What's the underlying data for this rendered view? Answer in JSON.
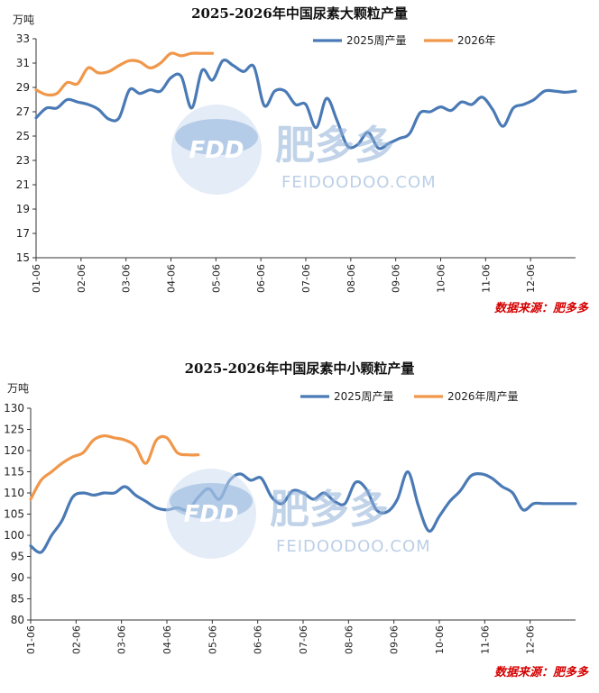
{
  "watermark": {
    "logo_text": "FDD",
    "brand": "肥多多",
    "site": "FEIDOODOO.COM"
  },
  "colors": {
    "series_2025": "#4a7ab5",
    "series_2026": "#f0974a",
    "source": "#d40000"
  },
  "chart_data": [
    {
      "type": "line",
      "title": "2025-2026年中国尿素大颗粒产量",
      "ylabel": "万吨",
      "ylim": [
        15,
        33
      ],
      "yticks": [
        15,
        17,
        19,
        21,
        23,
        25,
        27,
        29,
        31,
        33
      ],
      "xlim": [
        0,
        52
      ],
      "xtick_labels": [
        "01-06",
        "02-06",
        "03-06",
        "04-06",
        "05-06",
        "06-06",
        "07-06",
        "08-06",
        "09-06",
        "10-06",
        "11-06",
        "12-06"
      ],
      "source": "数据来源：肥多多",
      "series": [
        {
          "name": "2025周产量",
          "color": "#4a7ab5",
          "x": [
            0,
            1,
            2,
            3,
            4,
            5,
            6,
            7,
            8,
            9,
            10,
            11,
            12,
            13,
            14,
            15,
            16,
            17,
            18,
            19,
            20,
            21,
            22,
            23,
            24,
            25,
            26,
            27,
            28,
            29,
            30,
            31,
            32,
            33,
            34,
            35,
            36,
            37,
            38,
            39,
            40,
            41,
            42,
            43,
            44,
            45,
            46,
            47,
            48,
            49,
            50,
            51,
            52
          ],
          "y": [
            26.5,
            27.3,
            27.3,
            28.0,
            27.8,
            27.6,
            27.2,
            26.4,
            26.5,
            28.8,
            28.5,
            28.8,
            28.7,
            29.8,
            29.9,
            27.3,
            30.4,
            29.6,
            31.2,
            30.8,
            30.3,
            30.7,
            27.5,
            28.7,
            28.7,
            27.6,
            27.6,
            25.7,
            28.1,
            26.3,
            24.2,
            24.3,
            25.3,
            24.0,
            24.4,
            24.8,
            25.2,
            26.9,
            27.0,
            27.4,
            27.1,
            27.8,
            27.6,
            28.2,
            27.2,
            25.8,
            27.3,
            27.6,
            28.0,
            28.7,
            28.7,
            28.6,
            28.7
          ]
        },
        {
          "name": "2026年",
          "color": "#f0974a",
          "x": [
            0,
            1,
            2,
            3,
            4,
            5,
            6,
            7,
            8,
            9,
            10,
            11,
            12,
            13,
            14,
            15,
            16,
            17
          ],
          "y": [
            28.8,
            28.4,
            28.5,
            29.4,
            29.3,
            30.6,
            30.2,
            30.3,
            30.8,
            31.2,
            31.1,
            30.6,
            31.0,
            31.8,
            31.6,
            31.8,
            31.8,
            31.8
          ]
        }
      ]
    },
    {
      "type": "line",
      "title": "2025-2026年中国尿素中小颗粒产量",
      "ylabel": "万吨",
      "ylim": [
        80,
        130
      ],
      "yticks": [
        80,
        85,
        90,
        95,
        100,
        105,
        110,
        115,
        120,
        125,
        130
      ],
      "xlim": [
        0,
        52
      ],
      "xtick_labels": [
        "01-06",
        "02-06",
        "03-06",
        "04-06",
        "05-06",
        "06-06",
        "07-06",
        "08-06",
        "09-06",
        "10-06",
        "11-06",
        "12-06"
      ],
      "source": "数据来源：肥多多",
      "series": [
        {
          "name": "2025周产量",
          "color": "#4a7ab5",
          "x": [
            0,
            1,
            2,
            3,
            4,
            5,
            6,
            7,
            8,
            9,
            10,
            11,
            12,
            13,
            14,
            15,
            16,
            17,
            18,
            19,
            20,
            21,
            22,
            23,
            24,
            25,
            26,
            27,
            28,
            29,
            30,
            31,
            32,
            33,
            34,
            35,
            36,
            37,
            38,
            39,
            40,
            41,
            42,
            43,
            44,
            45,
            46,
            47,
            48,
            49,
            50,
            51,
            52
          ],
          "y": [
            97.5,
            96.0,
            100.0,
            103.5,
            109.0,
            110.0,
            109.5,
            110.0,
            110.0,
            111.5,
            109.5,
            108.0,
            106.5,
            106.0,
            106.5,
            106.0,
            109.0,
            111.0,
            108.5,
            113.0,
            114.5,
            113.0,
            113.5,
            109.0,
            107.5,
            110.5,
            110.0,
            108.5,
            110.0,
            108.0,
            107.5,
            112.5,
            111.0,
            106.0,
            105.5,
            108.5,
            115.0,
            107.0,
            101.0,
            104.5,
            108.0,
            110.5,
            114.0,
            114.5,
            113.5,
            111.5,
            110.0,
            106.0,
            107.5,
            107.5,
            107.5,
            107.5,
            107.5
          ]
        },
        {
          "name": "2026年周产量",
          "color": "#f0974a",
          "x": [
            0,
            1,
            2,
            3,
            4,
            5,
            6,
            7,
            8,
            9,
            10,
            11,
            12,
            13,
            14,
            15,
            16
          ],
          "y": [
            108.5,
            113.0,
            115.0,
            117.0,
            118.5,
            119.5,
            122.5,
            123.5,
            123.0,
            122.5,
            121.0,
            117.0,
            122.5,
            123.0,
            119.5,
            119.0,
            119.0
          ]
        }
      ]
    }
  ]
}
